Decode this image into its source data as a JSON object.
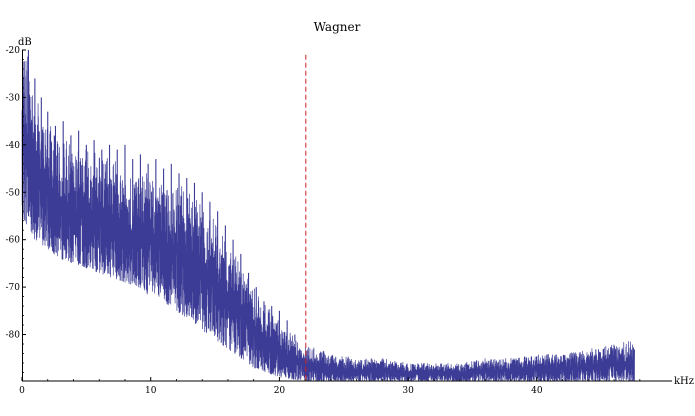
{
  "chart_data": {
    "type": "line",
    "title": "Wagner",
    "xlabel": "kHz",
    "ylabel": "dB",
    "xlim": [
      0,
      50.5
    ],
    "ylim": [
      -89.8,
      -20
    ],
    "x_ticks": [
      0,
      10,
      20,
      30,
      40
    ],
    "y_ticks": [
      -20,
      -30,
      -40,
      -50,
      -60,
      -70,
      -80
    ],
    "x_tick_labels": [
      "0",
      "10",
      "20",
      "30",
      "40"
    ],
    "y_tick_labels": [
      "-20",
      "-30",
      "-40",
      "-50",
      "-60",
      "-70",
      "-80"
    ],
    "grid": false,
    "series": [
      {
        "color": "#3c3c96",
        "x_end": 47.6,
        "envelope_top": [
          [
            0,
            -20
          ],
          [
            0.5,
            -20
          ],
          [
            1,
            -30
          ],
          [
            2,
            -35
          ],
          [
            3,
            -38
          ],
          [
            4,
            -40
          ],
          [
            5,
            -41
          ],
          [
            6,
            -42
          ],
          [
            7,
            -43
          ],
          [
            8,
            -45
          ],
          [
            9,
            -46
          ],
          [
            10,
            -46
          ],
          [
            11,
            -48
          ],
          [
            12,
            -48
          ],
          [
            13,
            -50
          ],
          [
            14,
            -53
          ],
          [
            15,
            -56
          ],
          [
            16,
            -60
          ],
          [
            17,
            -65
          ],
          [
            18,
            -70
          ],
          [
            19,
            -74
          ],
          [
            20,
            -76
          ],
          [
            21,
            -80
          ],
          [
            22,
            -82
          ],
          [
            24,
            -84
          ],
          [
            26,
            -85
          ],
          [
            28,
            -85
          ],
          [
            30,
            -86
          ],
          [
            32,
            -86
          ],
          [
            34,
            -86
          ],
          [
            36,
            -85
          ],
          [
            38,
            -85
          ],
          [
            40,
            -84
          ],
          [
            42,
            -84
          ],
          [
            44,
            -83
          ],
          [
            46,
            -82
          ],
          [
            47.6,
            -81
          ]
        ],
        "envelope_bottom": [
          [
            0,
            -55
          ],
          [
            1,
            -60
          ],
          [
            2,
            -62
          ],
          [
            3,
            -64
          ],
          [
            4,
            -65
          ],
          [
            5,
            -66
          ],
          [
            6,
            -67
          ],
          [
            7,
            -68
          ],
          [
            8,
            -69
          ],
          [
            9,
            -70
          ],
          [
            10,
            -72
          ],
          [
            11,
            -73
          ],
          [
            12,
            -75
          ],
          [
            13,
            -77
          ],
          [
            14,
            -79
          ],
          [
            15,
            -81
          ],
          [
            16,
            -83
          ],
          [
            17,
            -85
          ],
          [
            18,
            -87
          ],
          [
            19,
            -88
          ],
          [
            20,
            -89
          ],
          [
            22,
            -89.8
          ],
          [
            24,
            -89.8
          ],
          [
            28,
            -89.8
          ],
          [
            32,
            -89.8
          ],
          [
            36,
            -89.8
          ],
          [
            40,
            -89.8
          ],
          [
            44,
            -89.8
          ],
          [
            47.6,
            -89.8
          ]
        ],
        "harmonic_peaks": [
          [
            0.5,
            -20
          ],
          [
            1.0,
            -26
          ],
          [
            1.5,
            -30
          ],
          [
            2.0,
            -33
          ],
          [
            2.6,
            -36
          ],
          [
            3.2,
            -35
          ],
          [
            3.8,
            -38
          ],
          [
            4.4,
            -37
          ],
          [
            5.0,
            -40
          ],
          [
            5.6,
            -39
          ],
          [
            6.2,
            -41
          ],
          [
            6.8,
            -40
          ],
          [
            7.4,
            -41
          ],
          [
            8.0,
            -40
          ],
          [
            8.6,
            -43
          ],
          [
            9.2,
            -42
          ],
          [
            9.8,
            -44
          ],
          [
            10.4,
            -43
          ],
          [
            11.0,
            -45
          ],
          [
            11.6,
            -44
          ],
          [
            12.2,
            -46
          ],
          [
            12.8,
            -47
          ],
          [
            13.4,
            -48
          ],
          [
            14.0,
            -50
          ],
          [
            14.6,
            -52
          ],
          [
            15.2,
            -54
          ],
          [
            15.8,
            -57
          ],
          [
            16.4,
            -60
          ],
          [
            17.0,
            -63
          ],
          [
            17.6,
            -67
          ],
          [
            18.2,
            -70
          ],
          [
            18.8,
            -73
          ],
          [
            19.4,
            -74
          ],
          [
            20.0,
            -75
          ],
          [
            20.6,
            -77
          ],
          [
            21.2,
            -80
          ]
        ]
      }
    ],
    "annotations": [
      {
        "type": "vertical-dashed-line",
        "x": 22.05,
        "y_top": -21,
        "color": "#d02020"
      }
    ]
  }
}
